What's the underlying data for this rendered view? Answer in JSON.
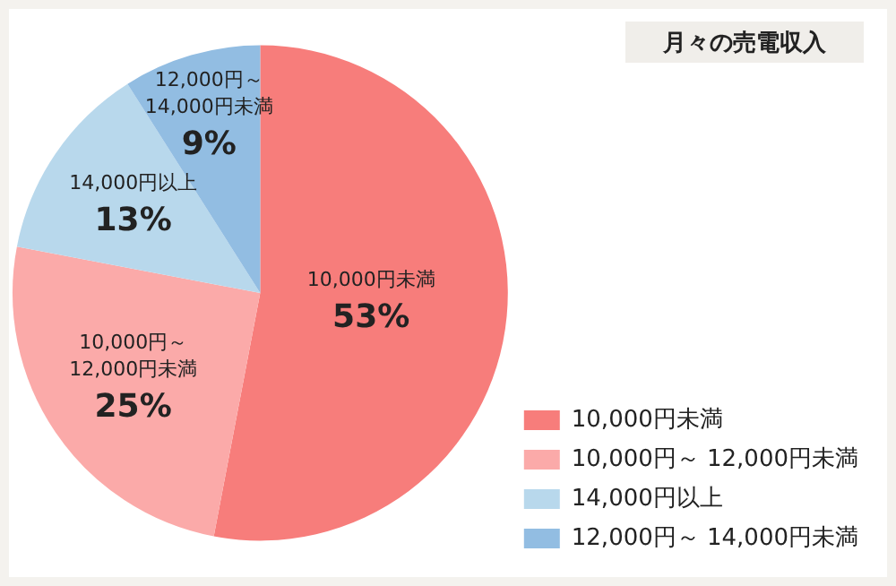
{
  "chart_data": {
    "type": "pie",
    "title": "月々の売電収入",
    "categories": [
      "10,000円未満",
      "10,000円～ 12,000円未満",
      "14,000円以上",
      "12,000円～ 14,000円未満"
    ],
    "values": [
      53,
      25,
      13,
      9
    ],
    "value_labels": [
      "53%",
      "25%",
      "13%",
      "9%"
    ],
    "colors": [
      "#f77d7b",
      "#fbaaa9",
      "#b8d8ec",
      "#92bde2"
    ],
    "legend": "bottom right"
  }
}
